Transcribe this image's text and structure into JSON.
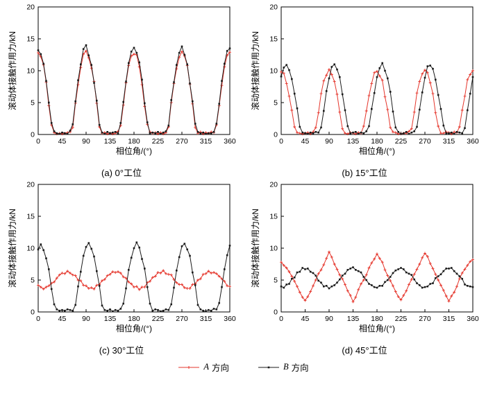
{
  "figure": {
    "axis": {
      "xlabel": "相位角/(°)",
      "ylabel": "滚动体接触作用力/kN",
      "xlim": [
        0,
        360
      ],
      "ylim": [
        0,
        20
      ],
      "xticks": [
        0,
        45,
        90,
        135,
        180,
        225,
        270,
        315,
        360
      ],
      "yticks": [
        0,
        5,
        10,
        15,
        20
      ]
    },
    "legend": [
      {
        "symbol": "A",
        "text": "方向",
        "color": "#e5352b",
        "marker": "plus"
      },
      {
        "symbol": "B",
        "text": "方向",
        "color": "#1a1a1a",
        "marker": "square"
      }
    ]
  },
  "chart_data": [
    {
      "type": "line",
      "title": "(a) 0°工位",
      "x_start": 0,
      "x_step": 5,
      "series": [
        {
          "name": "A方向",
          "color": "#e5352b",
          "marker": "plus",
          "values": [
            12.8,
            12.2,
            10.9,
            8.2,
            4.5,
            1.5,
            0.3,
            0.1,
            0.2,
            0.1,
            0.2,
            0.3,
            0.4,
            1.1,
            4.9,
            7.8,
            10.5,
            12.6,
            13.1,
            12.0,
            10.4,
            8.3,
            4.9,
            1.2,
            0.2,
            0.3,
            0.1,
            0.2,
            0.1,
            0.2,
            0.5,
            1.4,
            4.6,
            8.1,
            10.8,
            12.3,
            12.6,
            12.5,
            10.6,
            7.8,
            4.4,
            1.6,
            0.4,
            0.2,
            0.3,
            0.1,
            0.3,
            0.1,
            0.3,
            1.2,
            5.0,
            8.0,
            10.3,
            12.1,
            13.0,
            12.3,
            10.8,
            7.9,
            4.8,
            1.1,
            0.2,
            0.4,
            0.1,
            0.3,
            0.2,
            0.4,
            0.3,
            1.5,
            4.5,
            7.7,
            10.6,
            12.4,
            12.9
          ]
        },
        {
          "name": "B方向",
          "color": "#1a1a1a",
          "marker": "square",
          "values": [
            13.2,
            12.6,
            11.1,
            8.4,
            5.0,
            1.8,
            0.5,
            0.2,
            0.1,
            0.3,
            0.2,
            0.1,
            0.6,
            1.6,
            5.2,
            8.5,
            11.0,
            13.4,
            14.0,
            12.4,
            10.9,
            8.1,
            5.3,
            1.5,
            0.3,
            0.1,
            0.4,
            0.2,
            0.3,
            0.4,
            0.2,
            1.8,
            5.1,
            8.3,
            11.2,
            13.0,
            13.6,
            12.8,
            11.3,
            8.6,
            4.9,
            1.9,
            0.2,
            0.3,
            0.2,
            0.4,
            0.1,
            0.3,
            0.5,
            1.4,
            5.4,
            8.2,
            10.9,
            12.8,
            13.8,
            12.5,
            11.0,
            8.0,
            5.2,
            1.7,
            0.4,
            0.2,
            0.3,
            0.1,
            0.2,
            0.2,
            0.4,
            1.7,
            4.8,
            8.4,
            11.1,
            13.1,
            13.5
          ]
        }
      ]
    },
    {
      "type": "line",
      "title": "(b) 15°工位",
      "x_start": 0,
      "x_step": 5,
      "series": [
        {
          "name": "A方向",
          "color": "#e5352b",
          "marker": "plus",
          "values": [
            9.8,
            9.6,
            8.0,
            6.0,
            3.8,
            1.2,
            0.3,
            0.2,
            0.1,
            0.2,
            0.3,
            0.1,
            0.4,
            1.1,
            3.4,
            6.4,
            8.4,
            9.3,
            10.2,
            9.4,
            8.3,
            6.3,
            3.5,
            0.9,
            0.2,
            0.1,
            0.3,
            0.2,
            0.1,
            0.3,
            0.2,
            1.3,
            3.7,
            6.1,
            8.0,
            9.7,
            9.9,
            9.2,
            8.5,
            5.9,
            3.9,
            1.1,
            0.4,
            0.3,
            0.1,
            0.1,
            0.2,
            0.2,
            0.5,
            0.9,
            3.5,
            6.5,
            8.3,
            9.5,
            10.1,
            9.7,
            8.1,
            6.4,
            3.4,
            1.3,
            0.2,
            0.2,
            0.4,
            0.3,
            0.1,
            0.4,
            0.3,
            1.2,
            3.8,
            6.0,
            8.6,
            9.4,
            10.0
          ]
        },
        {
          "name": "B方向",
          "color": "#1a1a1a",
          "marker": "square",
          "values": [
            9.1,
            10.5,
            10.9,
            10.1,
            8.7,
            6.4,
            4.1,
            1.2,
            0.3,
            0.2,
            0.1,
            0.3,
            0.2,
            0.4,
            0.3,
            1.1,
            3.7,
            6.8,
            8.8,
            10.6,
            11.0,
            10.2,
            9.0,
            6.3,
            3.8,
            1.3,
            0.2,
            0.3,
            0.4,
            0.1,
            0.3,
            0.2,
            0.5,
            1.3,
            4.0,
            6.5,
            9.0,
            10.4,
            11.2,
            10.0,
            8.8,
            6.7,
            3.6,
            1.1,
            0.4,
            0.1,
            0.2,
            0.4,
            0.1,
            0.3,
            0.5,
            1.2,
            3.9,
            6.6,
            8.9,
            10.7,
            10.8,
            10.3,
            8.6,
            6.2,
            4.0,
            1.4,
            0.2,
            0.2,
            0.3,
            0.1,
            0.4,
            0.3,
            0.2,
            1.0,
            3.8,
            6.4,
            9.0
          ]
        }
      ]
    },
    {
      "type": "line",
      "title": "(c) 30°工位",
      "x_start": 0,
      "x_step": 5,
      "series": [
        {
          "name": "A方向",
          "color": "#e5352b",
          "marker": "plus",
          "values": [
            4.2,
            3.9,
            3.6,
            3.9,
            4.1,
            4.5,
            4.7,
            5.3,
            5.8,
            6.1,
            6.0,
            6.4,
            6.1,
            5.8,
            5.7,
            5.0,
            4.9,
            4.2,
            4.1,
            3.7,
            3.8,
            3.6,
            4.2,
            4.3,
            4.9,
            5.1,
            5.7,
            5.9,
            6.3,
            6.2,
            6.3,
            6.1,
            5.5,
            5.3,
            4.7,
            4.4,
            3.9,
            4.0,
            3.5,
            3.9,
            3.9,
            4.6,
            4.8,
            5.4,
            5.6,
            6.2,
            6.1,
            6.5,
            6.0,
            5.9,
            5.8,
            5.1,
            4.6,
            4.3,
            4.3,
            3.8,
            3.7,
            3.7,
            4.3,
            4.4,
            5.0,
            5.2,
            5.9,
            6.0,
            6.4,
            6.1,
            6.2,
            6.0,
            5.6,
            5.2,
            4.8,
            4.1,
            4.0
          ]
        },
        {
          "name": "B方向",
          "color": "#1a1a1a",
          "marker": "square",
          "values": [
            9.8,
            10.6,
            9.7,
            8.4,
            6.7,
            3.6,
            1.2,
            0.4,
            0.2,
            0.3,
            0.2,
            0.4,
            0.3,
            0.2,
            1.1,
            4.0,
            6.3,
            8.8,
            10.2,
            10.8,
            9.9,
            8.7,
            6.4,
            4.1,
            1.0,
            0.3,
            0.2,
            0.4,
            0.1,
            0.3,
            0.2,
            0.5,
            1.3,
            3.7,
            6.6,
            8.5,
            10.0,
            10.9,
            10.1,
            8.3,
            6.8,
            3.9,
            1.3,
            0.2,
            0.4,
            0.3,
            0.1,
            0.2,
            0.4,
            0.3,
            1.2,
            3.8,
            6.5,
            8.6,
            10.3,
            10.7,
            9.8,
            8.8,
            6.2,
            4.2,
            1.1,
            0.4,
            0.2,
            0.1,
            0.3,
            0.2,
            0.5,
            0.4,
            1.4,
            3.9,
            6.7,
            8.9,
            10.4
          ]
        }
      ]
    },
    {
      "type": "line",
      "title": "(d) 45°工位",
      "x_start": 0,
      "x_step": 5,
      "series": [
        {
          "name": "A方向",
          "color": "#e5352b",
          "marker": "plus",
          "values": [
            7.8,
            7.3,
            6.9,
            6.3,
            5.6,
            4.8,
            4.0,
            3.1,
            2.3,
            1.8,
            2.4,
            3.2,
            4.1,
            5.0,
            6.0,
            6.6,
            7.4,
            8.4,
            9.4,
            8.6,
            7.5,
            6.7,
            5.8,
            5.2,
            4.3,
            3.3,
            2.6,
            1.6,
            2.3,
            3.5,
            4.4,
            5.0,
            5.8,
            6.9,
            7.7,
            8.3,
            9.1,
            8.4,
            7.8,
            6.6,
            5.7,
            4.9,
            4.1,
            3.2,
            2.4,
            1.9,
            2.6,
            3.3,
            4.3,
            5.1,
            5.9,
            6.7,
            7.5,
            8.5,
            9.2,
            8.7,
            7.6,
            6.8,
            5.9,
            5.0,
            4.2,
            3.4,
            2.5,
            1.7,
            2.5,
            3.1,
            4.0,
            5.2,
            6.1,
            6.7,
            7.3,
            7.9,
            8.2
          ]
        },
        {
          "name": "B方向",
          "color": "#1a1a1a",
          "marker": "square",
          "values": [
            4.0,
            3.8,
            4.3,
            4.4,
            5.2,
            5.4,
            6.2,
            6.3,
            6.9,
            6.7,
            6.8,
            6.3,
            6.1,
            5.7,
            4.9,
            4.6,
            4.0,
            4.1,
            3.7,
            4.0,
            4.2,
            4.6,
            5.1,
            5.7,
            6.0,
            6.6,
            6.8,
            7.0,
            6.6,
            6.4,
            6.2,
            5.5,
            5.0,
            4.4,
            4.2,
            3.9,
            3.8,
            4.1,
            4.1,
            4.7,
            5.0,
            5.5,
            6.1,
            6.5,
            6.7,
            6.9,
            6.7,
            6.2,
            6.0,
            5.8,
            5.1,
            4.5,
            4.2,
            3.8,
            3.9,
            4.0,
            4.4,
            4.5,
            5.3,
            5.6,
            5.9,
            6.4,
            6.8,
            6.8,
            6.9,
            6.4,
            6.0,
            5.6,
            5.2,
            4.3,
            4.1,
            4.0,
            3.9
          ]
        }
      ]
    }
  ]
}
